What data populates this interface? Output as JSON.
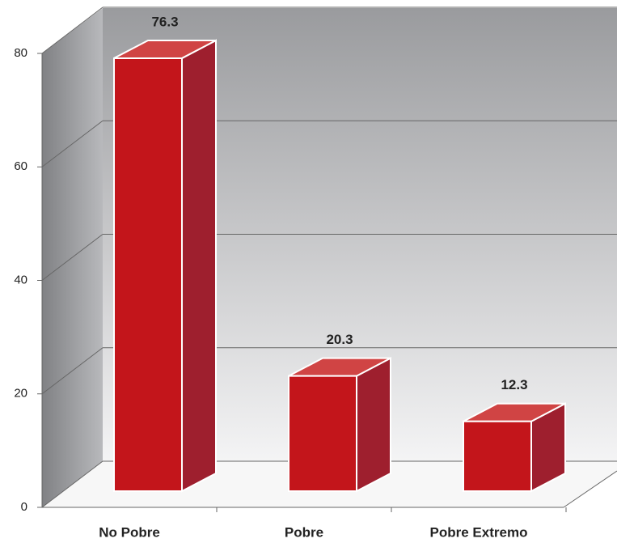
{
  "chart_data": {
    "type": "bar3d",
    "categories": [
      "No Pobre",
      "Pobre",
      "Pobre Extremo"
    ],
    "values": [
      76.3,
      20.3,
      12.3
    ],
    "color": "#c3151b",
    "ylim": [
      0,
      80
    ],
    "yticks": [
      0,
      20,
      40,
      60,
      80
    ],
    "grid": true
  }
}
